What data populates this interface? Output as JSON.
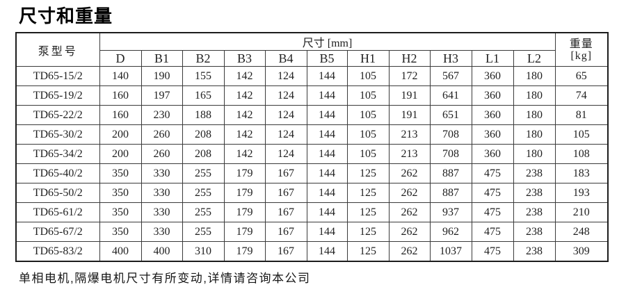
{
  "page": {
    "title": "尺寸和重量",
    "footnote": "单相电机,隔爆电机尺寸有所变动,详情请咨询本公司"
  },
  "table": {
    "corner_header": "泵型号",
    "group_header": "尺寸 [mm]",
    "weight_header_line1": "重量",
    "weight_header_line2": "[kg]",
    "dim_columns": [
      "D",
      "B1",
      "B2",
      "B3",
      "B4",
      "B5",
      "H1",
      "H2",
      "H3",
      "L1",
      "L2"
    ],
    "rows": [
      {
        "model": "TD65-15/2",
        "values": [
          140,
          190,
          155,
          142,
          124,
          144,
          105,
          172,
          567,
          360,
          180
        ],
        "weight": 65
      },
      {
        "model": "TD65-19/2",
        "values": [
          160,
          197,
          165,
          142,
          124,
          144,
          105,
          191,
          641,
          360,
          180
        ],
        "weight": 74
      },
      {
        "model": "TD65-22/2",
        "values": [
          160,
          230,
          188,
          142,
          124,
          144,
          105,
          191,
          651,
          360,
          180
        ],
        "weight": 81
      },
      {
        "model": "TD65-30/2",
        "values": [
          200,
          260,
          208,
          142,
          124,
          144,
          105,
          213,
          708,
          360,
          180
        ],
        "weight": 105
      },
      {
        "model": "TD65-34/2",
        "values": [
          200,
          260,
          208,
          142,
          124,
          144,
          105,
          213,
          708,
          360,
          180
        ],
        "weight": 108
      },
      {
        "model": "TD65-40/2",
        "values": [
          350,
          330,
          255,
          179,
          167,
          144,
          125,
          262,
          887,
          475,
          238
        ],
        "weight": 183
      },
      {
        "model": "TD65-50/2",
        "values": [
          350,
          330,
          255,
          179,
          167,
          144,
          125,
          262,
          887,
          475,
          238
        ],
        "weight": 193
      },
      {
        "model": "TD65-61/2",
        "values": [
          350,
          330,
          255,
          179,
          167,
          144,
          125,
          262,
          937,
          475,
          238
        ],
        "weight": 210
      },
      {
        "model": "TD65-67/2",
        "values": [
          350,
          330,
          255,
          179,
          167,
          144,
          125,
          262,
          962,
          475,
          238
        ],
        "weight": 248
      },
      {
        "model": "TD65-83/2",
        "values": [
          400,
          400,
          310,
          179,
          167,
          144,
          125,
          262,
          1037,
          475,
          238
        ],
        "weight": 309
      }
    ]
  }
}
